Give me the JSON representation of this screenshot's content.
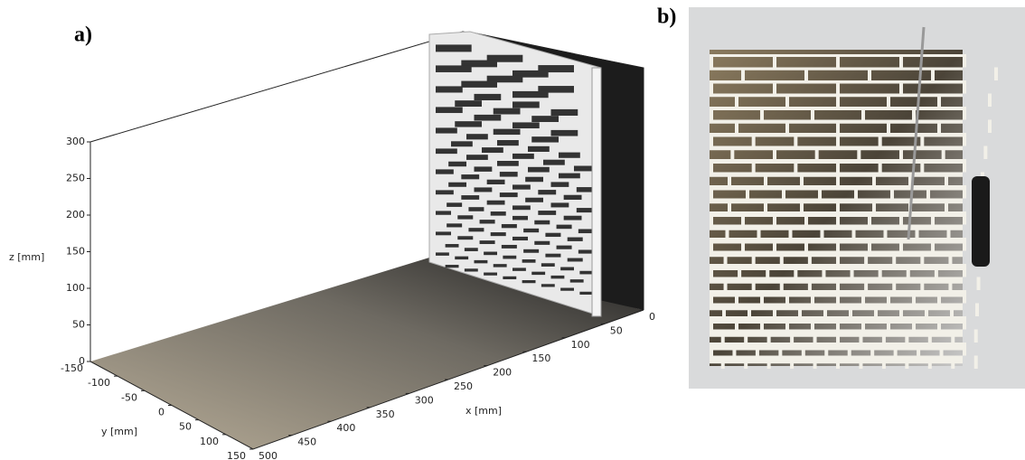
{
  "panel_a": {
    "label": "a)",
    "z_axis": {
      "label": "z [mm]",
      "ticks": [
        300,
        250,
        200,
        150,
        100,
        50,
        0
      ]
    },
    "y_axis": {
      "label": "y [mm]",
      "ticks": [
        -150,
        -100,
        -50,
        0,
        50,
        100,
        150
      ]
    },
    "x_axis": {
      "label": "x [mm]",
      "ticks": [
        500,
        450,
        400,
        350,
        300,
        250,
        200,
        150,
        100,
        50,
        0
      ]
    }
  },
  "panel_b": {
    "label": "b)"
  }
}
